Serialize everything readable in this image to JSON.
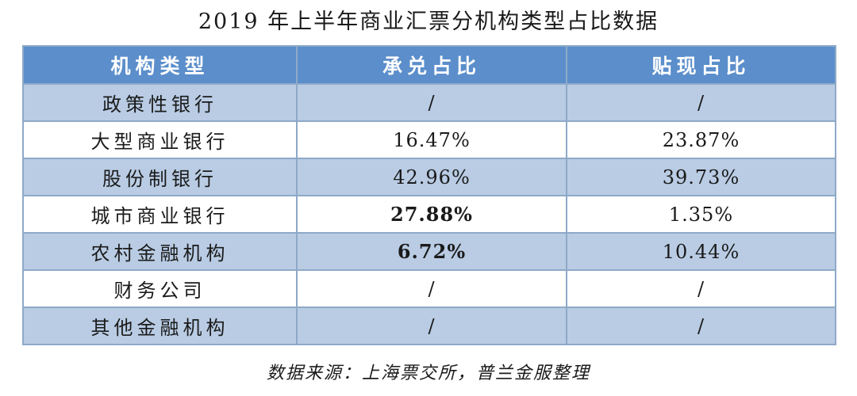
{
  "title": "2019 年上半年商业汇票分机构类型占比数据",
  "table": {
    "headers": [
      "机构类型",
      "承兑占比",
      "贴现占比"
    ],
    "rows": [
      {
        "type": "政策性银行",
        "acceptance": "/",
        "discount": "/"
      },
      {
        "type": "大型商业银行",
        "acceptance": "16.47%",
        "discount": "23.87%"
      },
      {
        "type": "股份制银行",
        "acceptance": "42.96%",
        "discount": "39.73%"
      },
      {
        "type": "城市商业银行",
        "acceptance": "27.88%",
        "discount": "1.35%"
      },
      {
        "type": "农村金融机构",
        "acceptance": "6.72%",
        "discount": "10.44%"
      },
      {
        "type": "财务公司",
        "acceptance": "/",
        "discount": "/"
      },
      {
        "type": "其他金融机构",
        "acceptance": "/",
        "discount": "/"
      }
    ]
  },
  "source": "数据来源：上海票交所，普兰金服整理",
  "colors": {
    "header_bg": "#5b8ecb",
    "stripe_bg": "#b9cce4",
    "border": "#8ea9c8"
  }
}
